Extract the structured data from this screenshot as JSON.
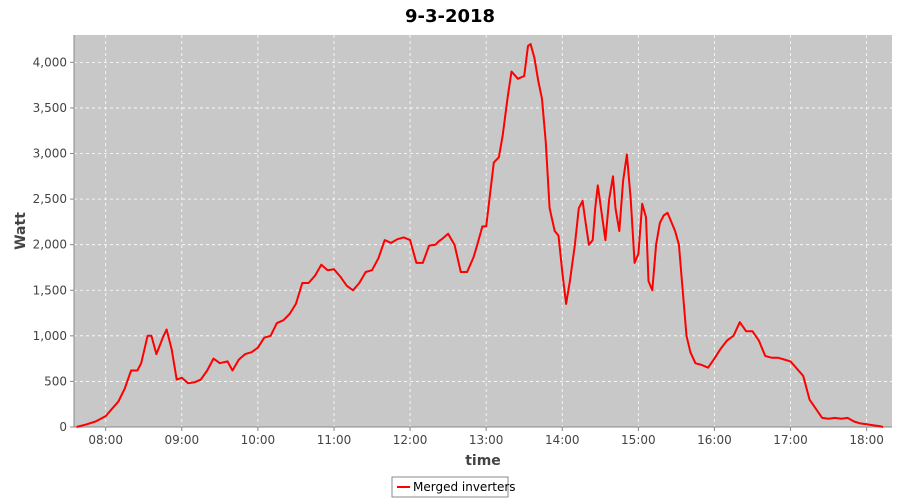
{
  "chart_data": {
    "type": "line",
    "title": "9-3-2018",
    "xlabel": "time",
    "ylabel": "Watt",
    "xlim": [
      "07:35",
      "18:20"
    ],
    "ylim": [
      0,
      4300
    ],
    "x_ticks": [
      "08:00",
      "09:00",
      "10:00",
      "11:00",
      "12:00",
      "13:00",
      "14:00",
      "15:00",
      "16:00",
      "17:00",
      "18:00"
    ],
    "y_ticks": [
      "0",
      "500",
      "1,000",
      "1,500",
      "2,000",
      "2,500",
      "3,000",
      "3,500",
      "4,000"
    ],
    "y_tick_values": [
      0,
      500,
      1000,
      1500,
      2000,
      2500,
      3000,
      3500,
      4000
    ],
    "grid": true,
    "legend": "bottom-center",
    "colors": {
      "series": "#ff0000",
      "plot_bg": "#c8c8c8",
      "grid": "#ffffff"
    },
    "series": [
      {
        "name": "Merged inverters",
        "x": [
          "07:37",
          "07:45",
          "07:52",
          "08:00",
          "08:05",
          "08:10",
          "08:15",
          "08:20",
          "08:25",
          "08:28",
          "08:33",
          "08:36",
          "08:40",
          "08:45",
          "08:48",
          "08:52",
          "08:56",
          "09:00",
          "09:05",
          "09:10",
          "09:15",
          "09:20",
          "09:25",
          "09:30",
          "09:36",
          "09:40",
          "09:45",
          "09:50",
          "09:55",
          "10:00",
          "10:05",
          "10:10",
          "10:15",
          "10:20",
          "10:25",
          "10:30",
          "10:35",
          "10:40",
          "10:45",
          "10:50",
          "10:55",
          "11:00",
          "11:05",
          "11:10",
          "11:15",
          "11:20",
          "11:25",
          "11:30",
          "11:35",
          "11:40",
          "11:45",
          "11:50",
          "11:55",
          "12:00",
          "12:05",
          "12:10",
          "12:15",
          "12:20",
          "12:23",
          "12:25",
          "12:30",
          "12:35",
          "12:40",
          "12:45",
          "12:50",
          "12:53",
          "12:57",
          "13:00",
          "13:03",
          "13:06",
          "13:10",
          "13:13",
          "13:17",
          "13:20",
          "13:25",
          "13:30",
          "13:33",
          "13:35",
          "13:38",
          "13:41",
          "13:44",
          "13:47",
          "13:50",
          "13:54",
          "13:57",
          "14:00",
          "14:03",
          "14:06",
          "14:10",
          "14:13",
          "14:16",
          "14:18",
          "14:21",
          "14:24",
          "14:26",
          "14:28",
          "14:31",
          "14:34",
          "14:37",
          "14:40",
          "14:42",
          "14:45",
          "14:48",
          "14:51",
          "14:54",
          "14:57",
          "15:00",
          "15:03",
          "15:06",
          "15:08",
          "15:11",
          "15:14",
          "15:17",
          "15:20",
          "15:23",
          "15:26",
          "15:29",
          "15:32",
          "15:35",
          "15:38",
          "15:41",
          "15:45",
          "15:50",
          "15:55",
          "16:00",
          "16:05",
          "16:10",
          "16:15",
          "16:20",
          "16:25",
          "16:30",
          "16:35",
          "16:40",
          "16:45",
          "16:50",
          "16:55",
          "17:00",
          "17:05",
          "17:10",
          "17:15",
          "17:20",
          "17:25",
          "17:30",
          "17:35",
          "17:40",
          "17:45",
          "17:50",
          "17:55",
          "18:00",
          "18:05",
          "18:10",
          "18:13"
        ],
        "values": [
          0,
          30,
          60,
          120,
          200,
          280,
          420,
          620,
          620,
          700,
          1000,
          1000,
          800,
          980,
          1070,
          850,
          520,
          540,
          480,
          490,
          520,
          620,
          750,
          700,
          720,
          620,
          740,
          800,
          820,
          870,
          980,
          1000,
          1140,
          1170,
          1240,
          1350,
          1580,
          1580,
          1660,
          1780,
          1720,
          1730,
          1650,
          1550,
          1500,
          1580,
          1700,
          1720,
          1850,
          2050,
          2020,
          2060,
          2080,
          2050,
          1800,
          1800,
          1990,
          2000,
          2040,
          2060,
          2120,
          2000,
          1700,
          1700,
          1860,
          2000,
          2200,
          2200,
          2550,
          2900,
          2960,
          3200,
          3620,
          3900,
          3820,
          3850,
          4180,
          4200,
          4050,
          3800,
          3600,
          3120,
          2400,
          2150,
          2100,
          1700,
          1350,
          1600,
          2000,
          2400,
          2480,
          2280,
          2000,
          2050,
          2400,
          2650,
          2350,
          2050,
          2500,
          2750,
          2400,
          2150,
          2700,
          2990,
          2500,
          1800,
          1900,
          2450,
          2300,
          1600,
          1500,
          2000,
          2240,
          2320,
          2350,
          2250,
          2150,
          2000,
          1500,
          1000,
          820,
          700,
          680,
          650,
          750,
          860,
          950,
          1000,
          1150,
          1050,
          1050,
          950,
          780,
          760,
          760,
          740,
          720,
          640,
          560,
          300,
          200,
          100,
          90,
          100,
          90,
          100,
          60,
          40,
          30,
          20,
          10,
          0
        ]
      }
    ]
  }
}
